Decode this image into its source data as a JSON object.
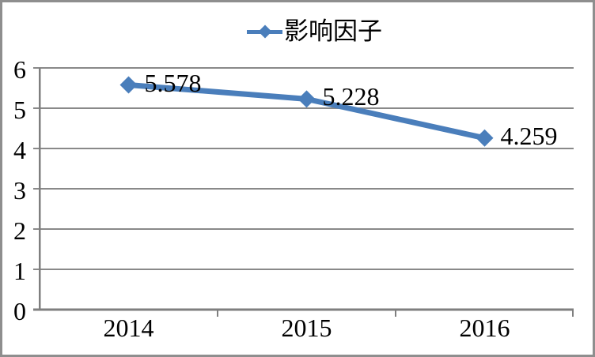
{
  "legend": {
    "label": "影响因子"
  },
  "chart_data": {
    "type": "line",
    "title": "",
    "categories": [
      "2014",
      "2015",
      "2016"
    ],
    "series": [
      {
        "name": "影响因子",
        "values": [
          5.578,
          5.228,
          4.259
        ],
        "data_labels": [
          "5.578",
          "5.228",
          "4.259"
        ]
      }
    ],
    "xlabel": "",
    "ylabel": "",
    "ylim": [
      0,
      6
    ],
    "yticks": [
      "0",
      "1",
      "2",
      "3",
      "4",
      "5",
      "6"
    ],
    "grid": true,
    "legend_position": "top-center",
    "marker": "diamond",
    "colors": {
      "series_line": "#4A7EBB",
      "marker_fill": "#4A7EBB",
      "gridline": "#898989",
      "axis": "#7F7F7F",
      "text": "#000000",
      "outer_border": "#8E8E8E",
      "background": "#FFFFFF"
    }
  }
}
